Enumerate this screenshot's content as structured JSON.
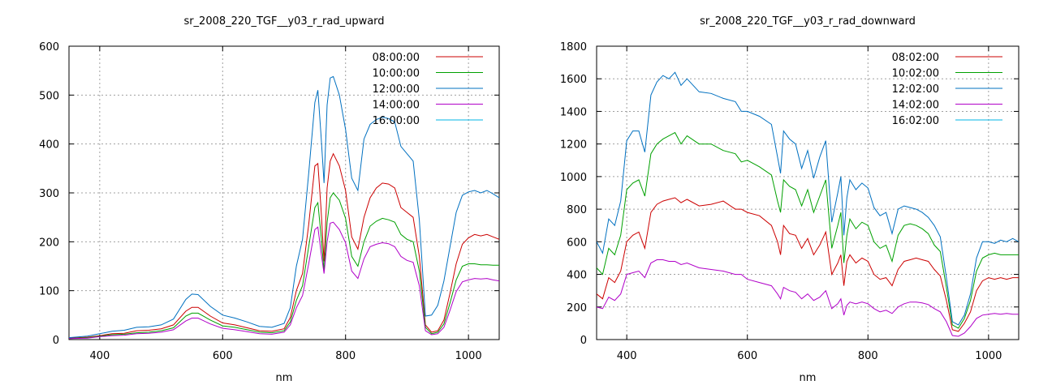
{
  "chart_data": [
    {
      "type": "line",
      "title": "sr_2008_220_TGF__y03_r_rad_upward",
      "xlabel": "nm",
      "ylabel": "",
      "xlim": [
        350,
        1050
      ],
      "ylim": [
        0,
        600
      ],
      "xticks": [
        400,
        600,
        800,
        1000
      ],
      "yticks": [
        0,
        100,
        200,
        300,
        400,
        500,
        600
      ],
      "grid": true,
      "legend_position": "top-right",
      "series": [
        {
          "name": "08:00:00",
          "color": "#cc0000",
          "x": [
            350,
            380,
            400,
            420,
            440,
            460,
            480,
            500,
            520,
            540,
            550,
            560,
            580,
            600,
            620,
            640,
            660,
            680,
            700,
            710,
            720,
            730,
            740,
            750,
            755,
            760,
            765,
            770,
            775,
            780,
            790,
            800,
            810,
            820,
            830,
            840,
            850,
            860,
            870,
            880,
            890,
            900,
            910,
            920,
            930,
            940,
            950,
            960,
            970,
            980,
            990,
            1000,
            1010,
            1020,
            1030,
            1040,
            1050
          ],
          "y": [
            3,
            5,
            8,
            12,
            13,
            18,
            19,
            22,
            30,
            58,
            66,
            66,
            48,
            34,
            30,
            24,
            18,
            17,
            22,
            45,
            100,
            135,
            235,
            355,
            360,
            270,
            160,
            310,
            365,
            380,
            355,
            305,
            210,
            185,
            250,
            290,
            310,
            320,
            318,
            310,
            270,
            260,
            250,
            170,
            30,
            15,
            18,
            40,
            95,
            155,
            195,
            208,
            215,
            212,
            215,
            210,
            205
          ]
        },
        {
          "name": "10:00:00",
          "color": "#00a000",
          "x": [
            350,
            380,
            400,
            420,
            440,
            460,
            480,
            500,
            520,
            540,
            550,
            560,
            580,
            600,
            620,
            640,
            660,
            680,
            700,
            710,
            720,
            730,
            740,
            750,
            755,
            760,
            765,
            770,
            775,
            780,
            790,
            800,
            810,
            820,
            830,
            840,
            850,
            860,
            870,
            880,
            890,
            900,
            910,
            920,
            930,
            940,
            950,
            960,
            970,
            980,
            990,
            1000,
            1010,
            1020,
            1030,
            1040,
            1050
          ],
          "y": [
            2,
            4,
            7,
            10,
            11,
            14,
            15,
            18,
            24,
            48,
            54,
            54,
            40,
            28,
            25,
            20,
            15,
            14,
            18,
            36,
            80,
            110,
            190,
            270,
            280,
            215,
            140,
            240,
            290,
            300,
            285,
            248,
            170,
            150,
            200,
            232,
            242,
            248,
            245,
            240,
            215,
            205,
            200,
            140,
            25,
            12,
            15,
            32,
            75,
            122,
            150,
            155,
            155,
            153,
            153,
            152,
            152
          ]
        },
        {
          "name": "12:00:00",
          "color": "#0070c0",
          "x": [
            350,
            380,
            400,
            420,
            440,
            460,
            480,
            500,
            520,
            540,
            550,
            560,
            580,
            600,
            620,
            640,
            660,
            680,
            700,
            710,
            720,
            730,
            740,
            750,
            755,
            760,
            765,
            770,
            775,
            780,
            790,
            800,
            810,
            820,
            830,
            840,
            850,
            860,
            870,
            880,
            890,
            900,
            910,
            920,
            930,
            940,
            950,
            960,
            970,
            980,
            990,
            1000,
            1010,
            1020,
            1030,
            1040,
            1050
          ],
          "y": [
            4,
            7,
            12,
            17,
            19,
            25,
            26,
            30,
            42,
            82,
            93,
            92,
            68,
            50,
            44,
            36,
            27,
            25,
            33,
            65,
            150,
            205,
            340,
            485,
            510,
            420,
            320,
            480,
            535,
            538,
            500,
            430,
            330,
            305,
            410,
            440,
            450,
            455,
            452,
            445,
            395,
            380,
            365,
            245,
            48,
            50,
            70,
            120,
            190,
            260,
            295,
            302,
            305,
            300,
            305,
            298,
            290
          ]
        },
        {
          "name": "14:00:00",
          "color": "#b000c8",
          "x": [
            350,
            380,
            400,
            420,
            440,
            460,
            480,
            500,
            520,
            540,
            550,
            560,
            580,
            600,
            620,
            640,
            660,
            680,
            700,
            710,
            720,
            730,
            740,
            750,
            755,
            760,
            765,
            770,
            775,
            780,
            790,
            800,
            810,
            820,
            830,
            840,
            850,
            860,
            870,
            880,
            890,
            900,
            910,
            920,
            930,
            940,
            950,
            960,
            970,
            980,
            990,
            1000,
            1010,
            1020,
            1030,
            1040,
            1050
          ],
          "y": [
            2,
            3,
            6,
            8,
            9,
            12,
            13,
            15,
            20,
            38,
            44,
            44,
            32,
            23,
            20,
            16,
            12,
            11,
            15,
            30,
            65,
            90,
            155,
            225,
            230,
            180,
            135,
            200,
            238,
            240,
            225,
            198,
            140,
            125,
            165,
            190,
            195,
            198,
            196,
            190,
            170,
            162,
            158,
            110,
            18,
            10,
            12,
            25,
            60,
            98,
            118,
            122,
            125,
            124,
            125,
            122,
            120
          ]
        },
        {
          "name": "16:00:00",
          "color": "#00b4e6",
          "x": [
            350,
            1050
          ],
          "y": [
            null,
            null
          ]
        }
      ]
    },
    {
      "type": "line",
      "title": "sr_2008_220_TGF__y03_r_rad_downward",
      "xlabel": "nm",
      "ylabel": "",
      "xlim": [
        350,
        1050
      ],
      "ylim": [
        0,
        1800
      ],
      "xticks": [
        400,
        600,
        800,
        1000
      ],
      "yticks": [
        0,
        200,
        400,
        600,
        800,
        1000,
        1200,
        1400,
        1600,
        1800
      ],
      "grid": true,
      "legend_position": "top-right",
      "series": [
        {
          "name": "08:02:00",
          "color": "#cc0000",
          "x": [
            350,
            360,
            370,
            380,
            390,
            400,
            410,
            420,
            430,
            440,
            450,
            460,
            470,
            480,
            490,
            500,
            520,
            540,
            560,
            580,
            590,
            600,
            620,
            640,
            650,
            655,
            660,
            670,
            680,
            690,
            700,
            710,
            720,
            730,
            740,
            750,
            755,
            760,
            765,
            770,
            780,
            790,
            800,
            810,
            820,
            830,
            840,
            850,
            860,
            870,
            880,
            890,
            900,
            910,
            920,
            930,
            940,
            950,
            960,
            970,
            980,
            990,
            1000,
            1010,
            1020,
            1030,
            1040,
            1050
          ],
          "y": [
            280,
            250,
            380,
            350,
            420,
            600,
            640,
            660,
            560,
            780,
            830,
            850,
            860,
            870,
            840,
            860,
            820,
            830,
            850,
            800,
            800,
            780,
            760,
            700,
            600,
            520,
            700,
            650,
            640,
            560,
            620,
            520,
            580,
            660,
            400,
            470,
            520,
            330,
            480,
            520,
            470,
            500,
            480,
            400,
            370,
            380,
            330,
            430,
            480,
            490,
            500,
            490,
            480,
            430,
            390,
            240,
            60,
            50,
            100,
            170,
            300,
            360,
            380,
            370,
            380,
            370,
            380,
            380
          ]
        },
        {
          "name": "10:02:00",
          "color": "#00a000",
          "x": [
            350,
            360,
            370,
            380,
            390,
            400,
            410,
            420,
            430,
            440,
            450,
            460,
            470,
            480,
            490,
            500,
            520,
            540,
            560,
            580,
            590,
            600,
            620,
            640,
            650,
            655,
            660,
            670,
            680,
            690,
            700,
            710,
            720,
            730,
            740,
            750,
            755,
            760,
            765,
            770,
            780,
            790,
            800,
            810,
            820,
            830,
            840,
            850,
            860,
            870,
            880,
            890,
            900,
            910,
            920,
            930,
            940,
            950,
            960,
            970,
            980,
            990,
            1000,
            1010,
            1020,
            1030,
            1040,
            1050
          ],
          "y": [
            440,
            400,
            560,
            520,
            640,
            920,
            960,
            980,
            880,
            1140,
            1200,
            1230,
            1250,
            1270,
            1200,
            1250,
            1200,
            1200,
            1160,
            1140,
            1090,
            1100,
            1060,
            1010,
            850,
            780,
            980,
            940,
            920,
            820,
            920,
            780,
            880,
            980,
            560,
            700,
            780,
            470,
            640,
            740,
            680,
            720,
            700,
            600,
            560,
            580,
            480,
            640,
            700,
            710,
            700,
            680,
            650,
            580,
            540,
            320,
            90,
            70,
            130,
            240,
            420,
            500,
            520,
            530,
            520,
            520,
            520,
            520
          ]
        },
        {
          "name": "12:02:00",
          "color": "#0070c0",
          "x": [
            350,
            360,
            370,
            380,
            390,
            400,
            410,
            420,
            430,
            440,
            450,
            460,
            470,
            480,
            490,
            500,
            520,
            540,
            560,
            580,
            590,
            600,
            620,
            640,
            650,
            655,
            660,
            670,
            680,
            690,
            700,
            710,
            720,
            730,
            740,
            750,
            755,
            760,
            765,
            770,
            780,
            790,
            800,
            810,
            820,
            830,
            840,
            850,
            860,
            870,
            880,
            890,
            900,
            910,
            920,
            930,
            940,
            950,
            960,
            970,
            980,
            990,
            1000,
            1010,
            1020,
            1030,
            1040,
            1050
          ],
          "y": [
            600,
            530,
            740,
            700,
            850,
            1220,
            1280,
            1280,
            1150,
            1500,
            1580,
            1620,
            1600,
            1640,
            1560,
            1600,
            1520,
            1510,
            1480,
            1460,
            1400,
            1400,
            1370,
            1320,
            1120,
            1020,
            1280,
            1230,
            1200,
            1050,
            1160,
            990,
            1120,
            1220,
            720,
            900,
            1000,
            640,
            870,
            980,
            920,
            960,
            930,
            810,
            760,
            780,
            650,
            800,
            820,
            810,
            800,
            780,
            750,
            700,
            630,
            380,
            110,
            90,
            150,
            280,
            500,
            600,
            600,
            590,
            610,
            600,
            620,
            600
          ]
        },
        {
          "name": "14:02:00",
          "color": "#b000c8",
          "x": [
            350,
            360,
            370,
            380,
            390,
            400,
            410,
            420,
            430,
            440,
            450,
            460,
            470,
            480,
            490,
            500,
            520,
            540,
            560,
            580,
            590,
            600,
            620,
            640,
            650,
            655,
            660,
            670,
            680,
            690,
            700,
            710,
            720,
            730,
            740,
            750,
            755,
            760,
            765,
            770,
            780,
            790,
            800,
            810,
            820,
            830,
            840,
            850,
            860,
            870,
            880,
            890,
            900,
            910,
            920,
            930,
            940,
            950,
            960,
            970,
            980,
            990,
            1000,
            1010,
            1020,
            1030,
            1040,
            1050
          ],
          "y": [
            200,
            190,
            260,
            240,
            280,
            400,
            410,
            420,
            380,
            470,
            490,
            490,
            480,
            480,
            460,
            470,
            440,
            430,
            420,
            400,
            400,
            370,
            350,
            330,
            280,
            250,
            320,
            300,
            290,
            250,
            280,
            240,
            260,
            300,
            190,
            220,
            250,
            150,
            210,
            230,
            220,
            230,
            220,
            190,
            170,
            180,
            160,
            200,
            220,
            230,
            230,
            225,
            215,
            190,
            170,
            110,
            25,
            20,
            40,
            80,
            130,
            150,
            155,
            160,
            155,
            160,
            155,
            155
          ]
        },
        {
          "name": "16:02:00",
          "color": "#00b4e6",
          "x": [
            350,
            1050
          ],
          "y": [
            null,
            null
          ]
        }
      ]
    }
  ]
}
